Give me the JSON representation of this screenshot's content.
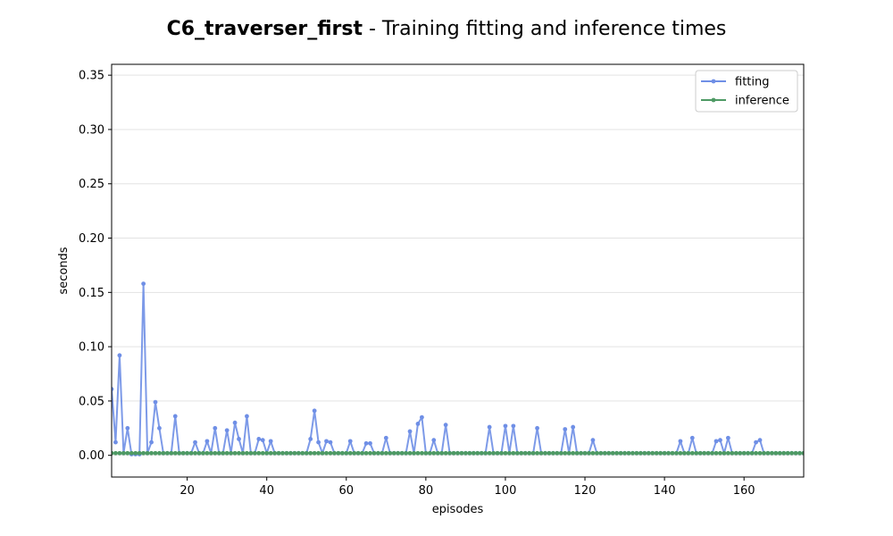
{
  "title": {
    "bold": "C6_traverser_first",
    "rest": " - Training fitting and inference times"
  },
  "chart_data": {
    "type": "line",
    "xlabel": "episodes",
    "ylabel": "seconds",
    "xlim": [
      1,
      175
    ],
    "ylim": [
      -0.02,
      0.36
    ],
    "xticks": [
      20,
      40,
      60,
      80,
      100,
      120,
      140,
      160
    ],
    "yticks": [
      0.0,
      0.05,
      0.1,
      0.15,
      0.2,
      0.25,
      0.3,
      0.35
    ],
    "ytick_labels": [
      "0.00",
      "0.05",
      "0.10",
      "0.15",
      "0.20",
      "0.25",
      "0.30",
      "0.35"
    ],
    "grid": "horizontal",
    "legend_position": "top-right",
    "series": [
      {
        "name": "fitting",
        "color": "#6f8fe6",
        "x_start": 1,
        "values": [
          0.061,
          0.012,
          0.092,
          0.002,
          0.025,
          0.001,
          0.001,
          0.001,
          0.158,
          0.002,
          0.012,
          0.049,
          0.025,
          0.002,
          0.002,
          0.002,
          0.036,
          0.002,
          0.002,
          0.002,
          0.002,
          0.012,
          0.002,
          0.002,
          0.013,
          0.002,
          0.025,
          0.002,
          0.002,
          0.023,
          0.002,
          0.03,
          0.015,
          0.002,
          0.036,
          0.002,
          0.002,
          0.015,
          0.014,
          0.002,
          0.013,
          0.002,
          0.002,
          0.002,
          0.002,
          0.002,
          0.002,
          0.002,
          0.002,
          0.002,
          0.015,
          0.041,
          0.012,
          0.002,
          0.013,
          0.012,
          0.002,
          0.002,
          0.002,
          0.002,
          0.013,
          0.002,
          0.002,
          0.002,
          0.011,
          0.011,
          0.002,
          0.002,
          0.002,
          0.016,
          0.002,
          0.002,
          0.002,
          0.002,
          0.002,
          0.022,
          0.002,
          0.029,
          0.035,
          0.002,
          0.002,
          0.014,
          0.002,
          0.002,
          0.028,
          0.002,
          0.002,
          0.002,
          0.002,
          0.002,
          0.002,
          0.002,
          0.002,
          0.002,
          0.002,
          0.026,
          0.002,
          0.002,
          0.002,
          0.027,
          0.002,
          0.027,
          0.002,
          0.002,
          0.002,
          0.002,
          0.002,
          0.025,
          0.002,
          0.002,
          0.002,
          0.002,
          0.002,
          0.002,
          0.024,
          0.002,
          0.026,
          0.002,
          0.002,
          0.002,
          0.002,
          0.014,
          0.002,
          0.002,
          0.002,
          0.002,
          0.002,
          0.002,
          0.002,
          0.002,
          0.002,
          0.002,
          0.002,
          0.002,
          0.002,
          0.002,
          0.002,
          0.002,
          0.002,
          0.002,
          0.002,
          0.002,
          0.002,
          0.013,
          0.002,
          0.002,
          0.016,
          0.002,
          0.002,
          0.002,
          0.002,
          0.002,
          0.013,
          0.014,
          0.002,
          0.016,
          0.002,
          0.002,
          0.002,
          0.002,
          0.002,
          0.002,
          0.012,
          0.014,
          0.002,
          0.002,
          0.002,
          0.002,
          0.002,
          0.002,
          0.002,
          0.002,
          0.002,
          0.002,
          0.002
        ]
      },
      {
        "name": "inference",
        "color": "#4e9a64",
        "x_start": 1,
        "constant_value": 0.002,
        "count": 175
      }
    ]
  }
}
